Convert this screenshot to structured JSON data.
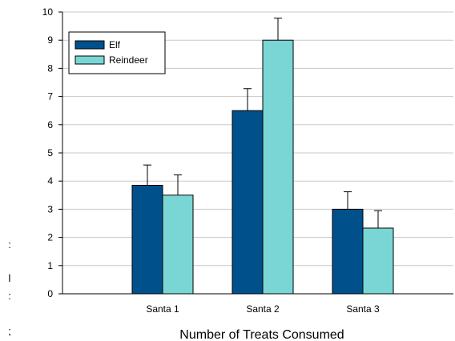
{
  "chart_data": {
    "type": "bar",
    "categories": [
      "Santa 1",
      "Santa 2",
      "Santa 3"
    ],
    "series": [
      {
        "name": "Elf",
        "values": [
          3.85,
          6.5,
          3.0
        ],
        "errors": [
          0.72,
          0.78,
          0.62
        ],
        "color": "#00508C"
      },
      {
        "name": "Reindeer",
        "values": [
          3.5,
          9.0,
          2.33
        ],
        "errors": [
          0.72,
          0.78,
          0.62
        ],
        "color": "#7AD6D4"
      }
    ],
    "xlabel": "Number of Treats Consumed",
    "ylabel_fragments": [
      ":",
      "l",
      ":",
      ";"
    ],
    "ylim": [
      0,
      10
    ],
    "yticks": [
      "0",
      "1",
      "2",
      "3",
      "4",
      "5",
      "6",
      "7",
      "8",
      "9",
      "10"
    ],
    "grid": true,
    "legend": "top-left"
  }
}
